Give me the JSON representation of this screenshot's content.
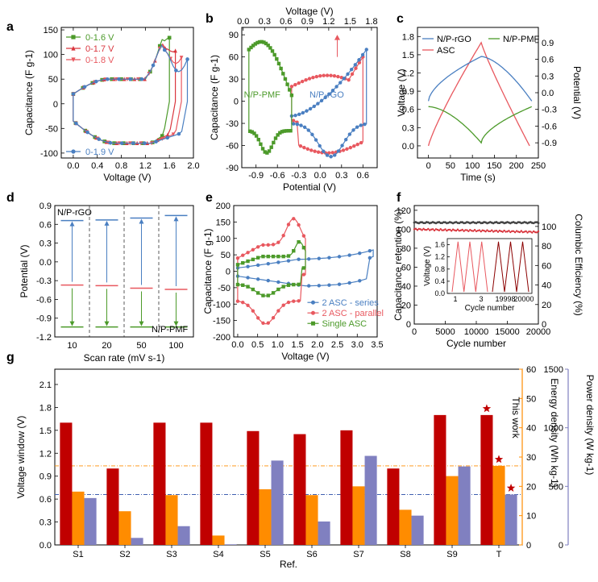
{
  "chart_data": [
    {
      "panel": "a",
      "type": "line",
      "xlabel": "Voltage (V)",
      "ylabel": "Capacitance (F g-1)",
      "xlim": [
        -0.2,
        2.0
      ],
      "ylim": [
        -110,
        155
      ],
      "xticks": [
        "0.0",
        "0.4",
        "0.8",
        "1.2",
        "1.6",
        "2.0"
      ],
      "yticks": [
        "-100",
        "-50",
        "0",
        "50",
        "100",
        "150"
      ],
      "legend": [
        "0-1.6 V",
        "0-1.7 V",
        "0-1.8 V",
        "0-1.9 V"
      ],
      "colors": [
        "#4c9a2a",
        "#d9363e",
        "#e8585f",
        "#4a7fc1"
      ],
      "series": [
        {
          "name": "0-1.6 V",
          "vmax": 1.6
        },
        {
          "name": "0-1.7 V",
          "vmax": 1.7
        },
        {
          "name": "0-1.8 V",
          "vmax": 1.8
        },
        {
          "name": "0-1.9 V",
          "vmax": 1.9
        }
      ]
    },
    {
      "panel": "b",
      "type": "line",
      "xlabel": "Potential (V)",
      "xlabel_top": "Voltage (V)",
      "ylabel": "Capacitance (F g-1)",
      "xlim": [
        -1.1,
        0.8
      ],
      "ylim": [
        -90,
        100
      ],
      "xticks": [
        "-0.9",
        "-0.6",
        "-0.3",
        "0.0",
        "0.3",
        "0.6"
      ],
      "xticks_top": [
        "0.0",
        "0.3",
        "0.6",
        "0.9",
        "1.2",
        "1.5",
        "1.8"
      ],
      "yticks": [
        "-90",
        "-60",
        "-30",
        "0",
        "30",
        "60",
        "90"
      ],
      "annotations": [
        "N/P-PMF",
        "N/P-rGO"
      ]
    },
    {
      "panel": "c",
      "type": "line",
      "xlabel": "Time (s)",
      "ylabel": "Voltage (V)",
      "ylabel_right": "Potential (V)",
      "xlim": [
        -25,
        250
      ],
      "ylim": [
        -0.2,
        1.95
      ],
      "xticks": [
        "0",
        "50",
        "100",
        "150",
        "200",
        "250"
      ],
      "yticks": [
        "0.0",
        "0.3",
        "0.6",
        "0.9",
        "1.2",
        "1.5",
        "1.8"
      ],
      "yticks_right": [
        "-0.9",
        "-0.6",
        "-0.3",
        "0.0",
        "0.3",
        "0.6",
        "0.9"
      ],
      "legend": [
        "N/P-rGO",
        "ASC",
        "N/P-PMF"
      ]
    },
    {
      "panel": "d",
      "type": "bar",
      "xlabel": "Scan rate (mV s-1)",
      "ylabel": "Potential (V)",
      "categories": [
        "10",
        "20",
        "50",
        "100"
      ],
      "yticks": [
        "-1.2",
        "-0.9",
        "-0.6",
        "-0.3",
        "0.0",
        "0.3",
        "0.6",
        "0.9"
      ],
      "ylim": [
        -1.2,
        0.9
      ],
      "upper": [
        0.66,
        0.67,
        0.7,
        0.74
      ],
      "lower": [
        -0.37,
        -0.38,
        -0.42,
        -0.44
      ],
      "bottom": [
        -1.04,
        -1.04,
        -1.04,
        -1.04
      ],
      "annotations": [
        "N/P-rGO",
        "N/P-PMF"
      ]
    },
    {
      "panel": "e",
      "type": "line",
      "xlabel": "Voltage (V)",
      "ylabel": "Capacitance (F g-1)",
      "xlim": [
        -0.1,
        3.5
      ],
      "ylim": [
        -200,
        200
      ],
      "xticks": [
        "0.0",
        "0.5",
        "1.0",
        "1.5",
        "2.0",
        "2.5",
        "3.0",
        "3.5"
      ],
      "yticks": [
        "-200",
        "-150",
        "-100",
        "-50",
        "0",
        "50",
        "100",
        "150",
        "200"
      ],
      "legend": [
        "2 ASC - series",
        "2 ASC - parallel",
        "Single ASC"
      ]
    },
    {
      "panel": "f",
      "type": "line",
      "xlabel": "Cycle number",
      "ylabel": "Capacitance retention (%)",
      "ylabel_right": "Columbic Efficiency (%)",
      "xlim": [
        0,
        20000
      ],
      "ylim": [
        0,
        125
      ],
      "xticks": [
        "0",
        "5000",
        "10000",
        "15000",
        "20000"
      ],
      "yticks": [
        "0",
        "20",
        "40",
        "60",
        "80",
        "100",
        "120"
      ],
      "yticks_right": [
        "0",
        "20",
        "40",
        "60",
        "80",
        "100"
      ],
      "retention": 97,
      "efficiency": 99,
      "inset": {
        "xlabel": "Cycle number",
        "ylabel": "Voltage (V)",
        "xticks": [
          "1",
          "3",
          "19998",
          "20000"
        ],
        "yticks": [
          "0.0",
          "0.4",
          "0.8",
          "1.2",
          "1.6"
        ]
      }
    },
    {
      "panel": "g",
      "type": "bar",
      "xlabel": "Ref.",
      "ylabel": "Voltage window (V)",
      "ylabel_right1": "Energy density (Wh kg-1)",
      "ylabel_right2": "Power density (W kg-1)",
      "categories": [
        "S1",
        "S2",
        "S3",
        "S4",
        "S5",
        "S6",
        "S7",
        "S8",
        "S9",
        "T"
      ],
      "yticks": [
        "0.0",
        "0.3",
        "0.6",
        "0.9",
        "1.2",
        "1.5",
        "1.8",
        "2.1"
      ],
      "yticks_r1": [
        "0",
        "10",
        "20",
        "30",
        "40",
        "50",
        "60"
      ],
      "yticks_r2": [
        "0",
        "500",
        "1000",
        "1500"
      ],
      "ylim": [
        0,
        2.3
      ],
      "ylim_r1": [
        0,
        60
      ],
      "ylim_r2": [
        0,
        1500
      ],
      "series": [
        {
          "name": "Voltage window",
          "values": [
            1.6,
            1.0,
            1.6,
            1.6,
            1.49,
            1.45,
            1.5,
            1.0,
            1.7,
            1.7
          ]
        },
        {
          "name": "Energy density",
          "values": [
            18.2,
            11.5,
            17.0,
            3.2,
            19.0,
            17.0,
            20.0,
            12.0,
            23.5,
            27.0
          ]
        },
        {
          "name": "Power density",
          "values": [
            400,
            60,
            160,
            5,
            720,
            200,
            760,
            250,
            670,
            430
          ]
        }
      ],
      "reference_lines": {
        "energy": 27.0,
        "power": 430
      },
      "annotation": "This work",
      "colors": {
        "voltage": "#c00000",
        "energy": "#ff8c00",
        "power": "#8080c0"
      }
    }
  ]
}
